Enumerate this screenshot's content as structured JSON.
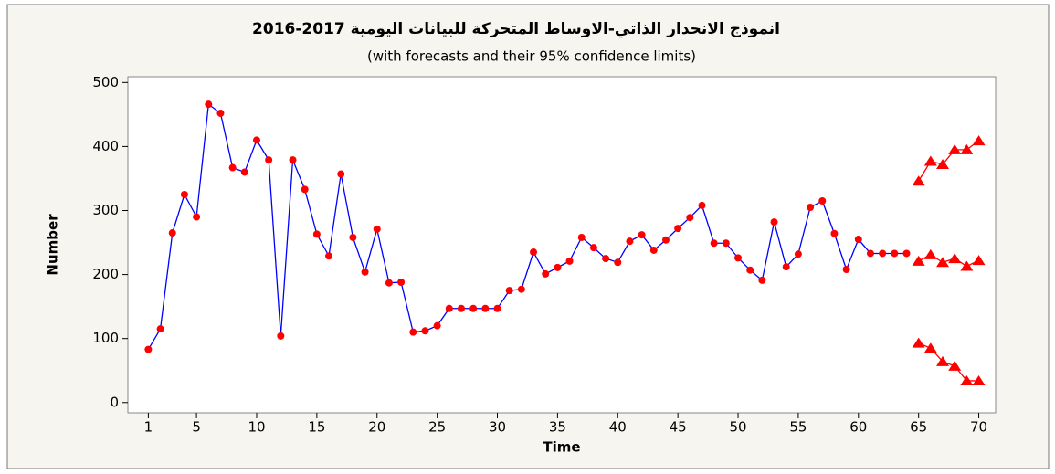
{
  "chart_data": {
    "type": "line",
    "title": "انموذج الانحدار الذاتي-الاوساط المتحركة للبيانات اليومية 2017-2016",
    "subtitle": "(with forecasts and their 95% confidence limits)",
    "x_label": "Time",
    "y_label": "Number",
    "xlim": [
      -0.7,
      71.4
    ],
    "ylim": [
      -16,
      509
    ],
    "xticks": [
      1,
      5,
      10,
      15,
      20,
      25,
      30,
      35,
      40,
      45,
      50,
      55,
      60,
      65,
      70
    ],
    "yticks": [
      0,
      100,
      200,
      300,
      400,
      500
    ],
    "grid": false,
    "series": [
      {
        "name": "Number",
        "color": "#0000ff",
        "marker_color": "#ff0000",
        "marker": "circle",
        "x": [
          1,
          2,
          3,
          4,
          5,
          6,
          7,
          8,
          9,
          10,
          11,
          12,
          13,
          14,
          15,
          16,
          17,
          18,
          19,
          20,
          21,
          22,
          23,
          24,
          25,
          26,
          27,
          28,
          29,
          30,
          31,
          32,
          33,
          34,
          35,
          36,
          37,
          38,
          39,
          40,
          41,
          42,
          43,
          44,
          45,
          46,
          47,
          48,
          49,
          50,
          51,
          52,
          53,
          54,
          55,
          56,
          57,
          58,
          59,
          60,
          61,
          62,
          63,
          64
        ],
        "values": [
          83,
          115,
          265,
          325,
          290,
          466,
          452,
          367,
          360,
          410,
          379,
          104,
          379,
          333,
          263,
          229,
          357,
          258,
          204,
          271,
          187,
          188,
          110,
          112,
          120,
          147,
          147,
          147,
          147,
          147,
          175,
          177,
          235,
          201,
          211,
          221,
          258,
          242,
          225,
          219,
          252,
          262,
          238,
          254,
          272,
          289,
          308,
          249,
          249,
          226,
          207,
          191,
          282,
          212,
          232,
          305,
          315,
          264,
          208,
          255,
          233,
          233,
          233,
          233
        ]
      },
      {
        "name": "Forecast",
        "color": "#ff0000",
        "marker_color": "#ff0000",
        "marker": "triangle",
        "x": [
          65,
          66,
          67,
          68,
          69,
          70
        ],
        "values": [
          221,
          231,
          219,
          225,
          213,
          222
        ]
      },
      {
        "name": "Upper",
        "color": "#ff0000",
        "marker_color": "#ff0000",
        "marker": "triangle",
        "x": [
          65,
          66,
          67,
          68,
          69,
          70
        ],
        "values": [
          346,
          377,
          372,
          395,
          395,
          409
        ]
      },
      {
        "name": "Lower",
        "color": "#ff0000",
        "marker_color": "#ff0000",
        "marker": "triangle",
        "x": [
          65,
          66,
          67,
          68,
          69,
          70
        ],
        "values": [
          93,
          85,
          64,
          57,
          34,
          34
        ]
      }
    ]
  }
}
